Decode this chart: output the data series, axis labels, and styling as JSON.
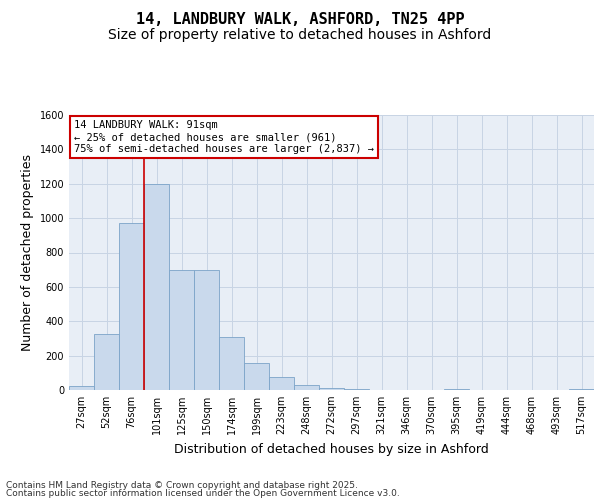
{
  "title1": "14, LANDBURY WALK, ASHFORD, TN25 4PP",
  "title2": "Size of property relative to detached houses in Ashford",
  "xlabel": "Distribution of detached houses by size in Ashford",
  "ylabel": "Number of detached properties",
  "categories": [
    "27sqm",
    "52sqm",
    "76sqm",
    "101sqm",
    "125sqm",
    "150sqm",
    "174sqm",
    "199sqm",
    "223sqm",
    "248sqm",
    "272sqm",
    "297sqm",
    "321sqm",
    "346sqm",
    "370sqm",
    "395sqm",
    "419sqm",
    "444sqm",
    "468sqm",
    "493sqm",
    "517sqm"
  ],
  "values": [
    25,
    325,
    970,
    1200,
    700,
    700,
    310,
    155,
    75,
    28,
    12,
    8,
    0,
    0,
    0,
    8,
    0,
    0,
    0,
    0,
    8
  ],
  "bar_color": "#c9d9ec",
  "bar_edge_color": "#7ba3c8",
  "vline_color": "#cc0000",
  "annotation_text": "14 LANDBURY WALK: 91sqm\n← 25% of detached houses are smaller (961)\n75% of semi-detached houses are larger (2,837) →",
  "annotation_box_color": "#ffffff",
  "annotation_box_edge": "#cc0000",
  "ylim": [
    0,
    1600
  ],
  "yticks": [
    0,
    200,
    400,
    600,
    800,
    1000,
    1200,
    1400,
    1600
  ],
  "grid_color": "#c8d4e4",
  "bg_color": "#e8eef6",
  "footer1": "Contains HM Land Registry data © Crown copyright and database right 2025.",
  "footer2": "Contains public sector information licensed under the Open Government Licence v3.0.",
  "title_fontsize": 11,
  "subtitle_fontsize": 10,
  "axis_label_fontsize": 9,
  "tick_fontsize": 7,
  "footer_fontsize": 6.5
}
